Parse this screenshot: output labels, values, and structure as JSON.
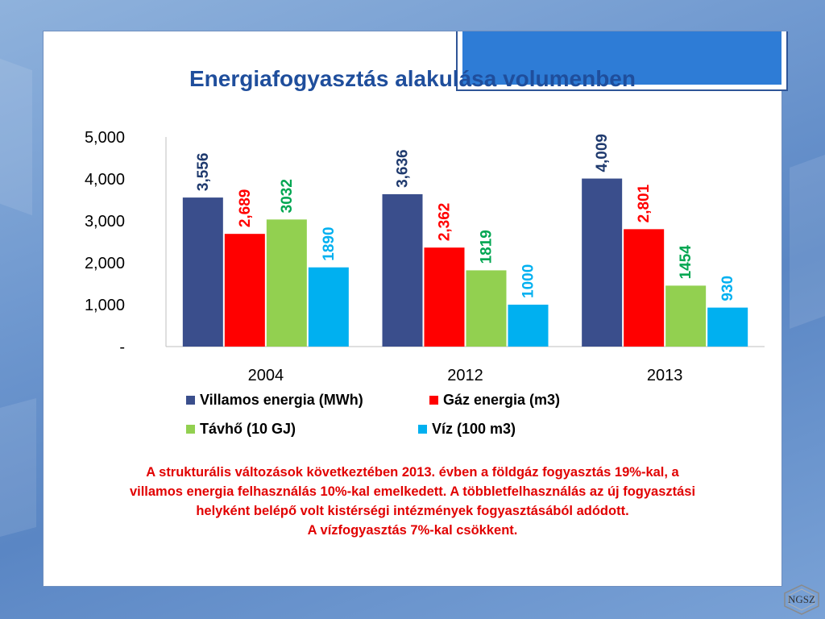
{
  "chart_data": {
    "type": "bar",
    "title": "Energiafogyasztás alakulása volumenben",
    "categories": [
      "2004",
      "2012",
      "2013"
    ],
    "series": [
      {
        "name": "Villamos energia (MWh)",
        "color": "#3a4e8c",
        "label_color": "#1f3a6e",
        "values": [
          3556,
          3636,
          4009
        ],
        "labels": [
          "3,556",
          "3,636",
          "4,009"
        ]
      },
      {
        "name": "Gáz energia (m3)",
        "color": "#ff0000",
        "label_color": "#ff0000",
        "values": [
          2689,
          2362,
          2801
        ],
        "labels": [
          "2,689",
          "2,362",
          "2,801"
        ]
      },
      {
        "name": "Távhő (10 GJ)",
        "color": "#92d050",
        "label_color": "#00a651",
        "values": [
          3032,
          1819,
          1454
        ],
        "labels": [
          "3032",
          "1819",
          "1454"
        ]
      },
      {
        "name": "Víz (100 m3)",
        "color": "#00b0f0",
        "label_color": "#00b0f0",
        "values": [
          1890,
          1000,
          930
        ],
        "labels": [
          "1890",
          "1000",
          "930"
        ]
      }
    ],
    "ylim": [
      0,
      5000
    ],
    "yticks": [
      0,
      1000,
      2000,
      3000,
      4000,
      5000
    ],
    "ytick_labels": [
      "-",
      "1,000",
      "2,000",
      "3,000",
      "4,000",
      "5,000"
    ],
    "xlabel": "",
    "ylabel": "",
    "grid": false,
    "legend_position": "bottom"
  },
  "caption": {
    "lines": [
      "A strukturális változások következtében 2013. évben a földgáz  fogyasztás 19%-kal, a",
      "villamos energia felhasználás 10%-kal emelkedett. A többletfelhasználás az új fogyasztási",
      "helyként belépő volt kistérségi intézmények fogyasztásából adódott.",
      "A vízfogyasztás 7%-kal csökkent."
    ]
  },
  "logo": {
    "text": "NGSZ"
  }
}
